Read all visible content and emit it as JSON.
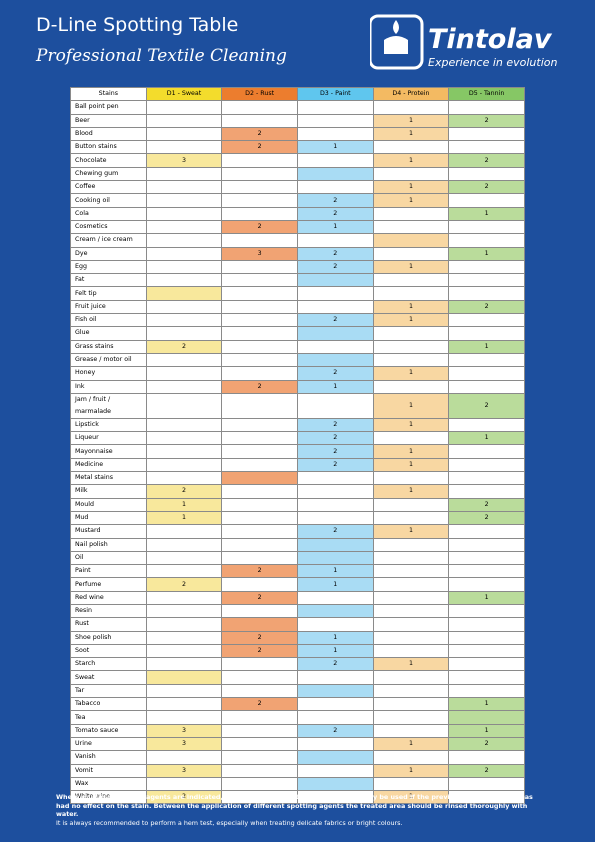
{
  "header": {
    "title": "D-Line Spotting Table",
    "subtitle": "Professional Textile Cleaning",
    "brand": "Tintolav",
    "tagline": "Experience in evolution"
  },
  "table": {
    "columns": [
      "Stains",
      "D1 - Sweat",
      "D2 - Rust",
      "D3 - Paint",
      "D4 - Protein",
      "D5 - Tannin"
    ],
    "rows": [
      {
        "stain": "Ball point pen",
        "cells": [
          null,
          null,
          null,
          null,
          null
        ],
        "shaded": []
      },
      {
        "stain": "Beer",
        "cells": [
          null,
          null,
          null,
          1,
          2
        ],
        "shaded": [
          3,
          4
        ]
      },
      {
        "stain": "Blood",
        "cells": [
          null,
          2,
          null,
          1,
          null
        ],
        "shaded": [
          1,
          3
        ]
      },
      {
        "stain": "Button stains",
        "cells": [
          null,
          2,
          1,
          null,
          null
        ],
        "shaded": [
          1,
          2
        ]
      },
      {
        "stain": "Chocolate",
        "cells": [
          3,
          null,
          null,
          1,
          2
        ],
        "shaded": [
          0,
          3,
          4
        ]
      },
      {
        "stain": "Chewing gum",
        "cells": [
          null,
          null,
          null,
          null,
          null
        ],
        "shaded": [
          2
        ]
      },
      {
        "stain": "Coffee",
        "cells": [
          null,
          null,
          null,
          1,
          2
        ],
        "shaded": [
          3,
          4
        ]
      },
      {
        "stain": "Cooking oil",
        "cells": [
          null,
          null,
          2,
          1,
          null
        ],
        "shaded": [
          2,
          3
        ]
      },
      {
        "stain": "Cola",
        "cells": [
          null,
          null,
          2,
          null,
          1
        ],
        "shaded": [
          2,
          4
        ]
      },
      {
        "stain": "Cosmetics",
        "cells": [
          null,
          2,
          1,
          null,
          null
        ],
        "shaded": [
          1,
          2
        ]
      },
      {
        "stain": "Cream / ice cream",
        "cells": [
          null,
          null,
          null,
          null,
          null
        ],
        "shaded": [
          3
        ]
      },
      {
        "stain": "Dye",
        "cells": [
          null,
          3,
          2,
          null,
          1
        ],
        "shaded": [
          1,
          2,
          4
        ]
      },
      {
        "stain": "Egg",
        "cells": [
          null,
          null,
          2,
          1,
          null
        ],
        "shaded": [
          2,
          3
        ]
      },
      {
        "stain": "Fat",
        "cells": [
          null,
          null,
          null,
          null,
          null
        ],
        "shaded": [
          2
        ]
      },
      {
        "stain": "Felt tip",
        "cells": [
          null,
          null,
          null,
          null,
          null
        ],
        "shaded": [
          0
        ]
      },
      {
        "stain": "Fruit juice",
        "cells": [
          null,
          null,
          null,
          1,
          2
        ],
        "shaded": [
          3,
          4
        ]
      },
      {
        "stain": "Fish oil",
        "cells": [
          null,
          null,
          2,
          1,
          null
        ],
        "shaded": [
          2,
          3
        ]
      },
      {
        "stain": "Glue",
        "cells": [
          null,
          null,
          null,
          null,
          null
        ],
        "shaded": [
          2
        ]
      },
      {
        "stain": "Grass stains",
        "cells": [
          2,
          null,
          null,
          null,
          1
        ],
        "shaded": [
          0,
          4
        ]
      },
      {
        "stain": "Grease / motor oil",
        "cells": [
          null,
          null,
          null,
          null,
          null
        ],
        "shaded": [
          2
        ]
      },
      {
        "stain": "Honey",
        "cells": [
          null,
          null,
          2,
          1,
          null
        ],
        "shaded": [
          2,
          3
        ]
      },
      {
        "stain": "Ink",
        "cells": [
          null,
          2,
          1,
          null,
          null
        ],
        "shaded": [
          1,
          2
        ]
      },
      {
        "stain": "Jam / fruit / marmalade",
        "cells": [
          null,
          null,
          null,
          1,
          2
        ],
        "shaded": [
          3,
          4
        ]
      },
      {
        "stain": "Lipstick",
        "cells": [
          null,
          null,
          2,
          1,
          null
        ],
        "shaded": [
          2,
          3
        ]
      },
      {
        "stain": "Liqueur",
        "cells": [
          null,
          null,
          2,
          null,
          1
        ],
        "shaded": [
          2,
          4
        ]
      },
      {
        "stain": "Mayonnaise",
        "cells": [
          null,
          null,
          2,
          1,
          null
        ],
        "shaded": [
          2,
          3
        ]
      },
      {
        "stain": "Medicine",
        "cells": [
          null,
          null,
          2,
          1,
          null
        ],
        "shaded": [
          2,
          3
        ]
      },
      {
        "stain": "Metal stains",
        "cells": [
          null,
          null,
          null,
          null,
          null
        ],
        "shaded": [
          1
        ]
      },
      {
        "stain": "Milk",
        "cells": [
          2,
          null,
          null,
          1,
          null
        ],
        "shaded": [
          0,
          3
        ]
      },
      {
        "stain": "Mould",
        "cells": [
          1,
          null,
          null,
          null,
          2
        ],
        "shaded": [
          0,
          4
        ]
      },
      {
        "stain": "Mud",
        "cells": [
          1,
          null,
          null,
          null,
          2
        ],
        "shaded": [
          0,
          4
        ]
      },
      {
        "stain": "Mustard",
        "cells": [
          null,
          null,
          2,
          1,
          null
        ],
        "shaded": [
          2,
          3
        ]
      },
      {
        "stain": "Nail polish",
        "cells": [
          null,
          null,
          null,
          null,
          null
        ],
        "shaded": [
          2
        ]
      },
      {
        "stain": "Oil",
        "cells": [
          null,
          null,
          null,
          null,
          null
        ],
        "shaded": [
          2
        ]
      },
      {
        "stain": "Paint",
        "cells": [
          null,
          2,
          1,
          null,
          null
        ],
        "shaded": [
          1,
          2
        ]
      },
      {
        "stain": "Perfume",
        "cells": [
          2,
          null,
          1,
          null,
          null
        ],
        "shaded": [
          0,
          2
        ]
      },
      {
        "stain": "Red wine",
        "cells": [
          null,
          2,
          null,
          null,
          1
        ],
        "shaded": [
          1,
          4
        ]
      },
      {
        "stain": "Resin",
        "cells": [
          null,
          null,
          null,
          null,
          null
        ],
        "shaded": [
          2
        ]
      },
      {
        "stain": "Rust",
        "cells": [
          null,
          null,
          null,
          null,
          null
        ],
        "shaded": [
          1
        ]
      },
      {
        "stain": "Shoe polish",
        "cells": [
          null,
          2,
          1,
          null,
          null
        ],
        "shaded": [
          1,
          2
        ]
      },
      {
        "stain": "Soot",
        "cells": [
          null,
          2,
          1,
          null,
          null
        ],
        "shaded": [
          1,
          2
        ]
      },
      {
        "stain": "Starch",
        "cells": [
          null,
          null,
          2,
          1,
          null
        ],
        "shaded": [
          2,
          3
        ]
      },
      {
        "stain": "Sweat",
        "cells": [
          null,
          null,
          null,
          null,
          null
        ],
        "shaded": [
          0
        ]
      },
      {
        "stain": "Tar",
        "cells": [
          null,
          null,
          null,
          null,
          null
        ],
        "shaded": [
          2
        ]
      },
      {
        "stain": "Tabacco",
        "cells": [
          null,
          2,
          null,
          null,
          1
        ],
        "shaded": [
          1,
          4
        ]
      },
      {
        "stain": "Tea",
        "cells": [
          null,
          null,
          null,
          null,
          null
        ],
        "shaded": [
          4
        ]
      },
      {
        "stain": "Tomato sauce",
        "cells": [
          3,
          null,
          2,
          null,
          1
        ],
        "shaded": [
          0,
          2,
          4
        ]
      },
      {
        "stain": "Urine",
        "cells": [
          3,
          null,
          null,
          1,
          2
        ],
        "shaded": [
          0,
          3,
          4
        ]
      },
      {
        "stain": "Vanish",
        "cells": [
          null,
          null,
          null,
          null,
          null
        ],
        "shaded": [
          2
        ]
      },
      {
        "stain": "Vomit",
        "cells": [
          3,
          null,
          null,
          1,
          2
        ],
        "shaded": [
          0,
          3,
          4
        ]
      },
      {
        "stain": "Wax",
        "cells": [
          null,
          null,
          null,
          null,
          null
        ],
        "shaded": [
          2
        ]
      },
      {
        "stain": "White wine",
        "cells": [
          2,
          null,
          null,
          1,
          null
        ],
        "shaded": [
          0,
          3
        ]
      }
    ]
  },
  "footer": {
    "note": "Where multiple spotting agents are indicated, the successive spotting agent should only be used if the previous spotting agent has had no effect on the stain. Between the application of different spotting agents the treated area should be rinsed thoroughly with water.",
    "advice": "It is always recommended to perform a hem test, especially when treating delicate fabrics or bright colours."
  }
}
